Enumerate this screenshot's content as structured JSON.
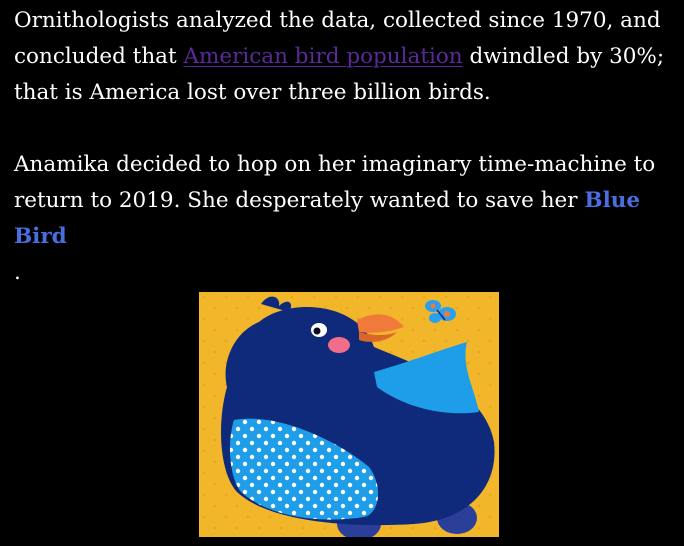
{
  "article": {
    "paragraph1": {
      "before_link": "Ornithologists analyzed the data, collected since 1970, and concluded that ",
      "link_text": "American bird population",
      "after_link": " dwindled by 30%; that is America lost over three billion birds."
    },
    "paragraph2": {
      "before_name": "Anamika decided to hop on her imaginary time-machine to return to 2019. She desperately wanted to save her ",
      "name": "Blue Bird",
      "after_name": " ."
    }
  },
  "illustration": {
    "subject": "blue bird with butterfly",
    "colors": {
      "background": "#f2b62a",
      "bird_body": "#0f2a7a",
      "wing": "#1e9ee8",
      "beak": "#f07a3a",
      "cheek": "#f06e8a",
      "butterfly": "#2aa0f0"
    }
  }
}
